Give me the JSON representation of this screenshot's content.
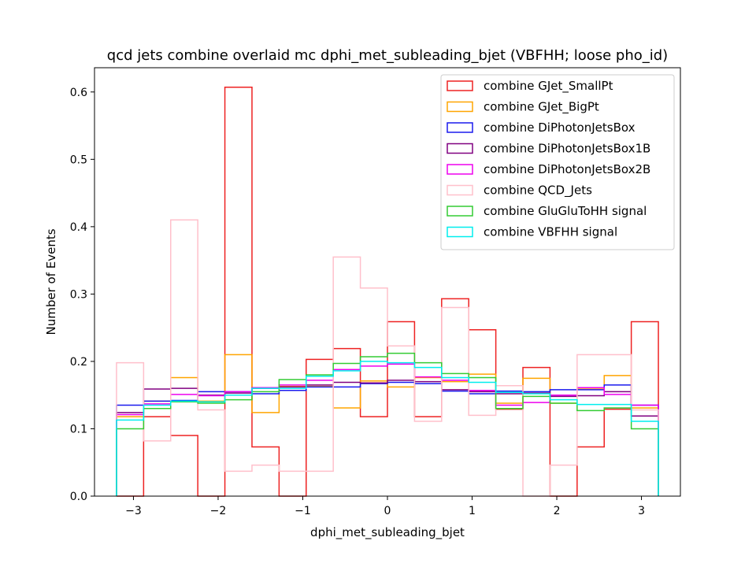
{
  "chart_data": {
    "type": "histogram-step",
    "title": "qcd jets combine overlaid mc dphi_met_subleading_bjet (VBFHH; loose pho_id)",
    "xlabel": "dphi_met_subleading_bjet",
    "ylabel": "Number of Events",
    "xlim": [
      -3.46,
      3.46
    ],
    "ylim": [
      0,
      0.636
    ],
    "xticks": [
      -3,
      -2,
      -1,
      0,
      1,
      2,
      3
    ],
    "xtick_labels": [
      "−3",
      "−2",
      "−1",
      "0",
      "1",
      "2",
      "3"
    ],
    "yticks": [
      0.0,
      0.1,
      0.2,
      0.3,
      0.4,
      0.5,
      0.6
    ],
    "ytick_labels": [
      "0.0",
      "0.1",
      "0.2",
      "0.3",
      "0.4",
      "0.5",
      "0.6"
    ],
    "bin_edges": [
      -3.2,
      -2.88,
      -2.56,
      -2.24,
      -1.92,
      -1.6,
      -1.28,
      -0.96,
      -0.64,
      -0.32,
      0.0,
      0.32,
      0.64,
      0.96,
      1.28,
      1.6,
      1.92,
      2.24,
      2.56,
      2.88,
      3.2
    ],
    "legend_position": "upper right",
    "series": [
      {
        "name": "combine GJet_SmallPt",
        "color": "#ee2222",
        "values": [
          0.0,
          0.118,
          0.09,
          0.0,
          0.607,
          0.073,
          0.0,
          0.203,
          0.219,
          0.118,
          0.259,
          0.118,
          0.293,
          0.247,
          0.129,
          0.191,
          0.0,
          0.073,
          0.129,
          0.259
        ]
      },
      {
        "name": "combine GJet_BigPt",
        "color": "#ffa500",
        "values": [
          0.118,
          0.141,
          0.176,
          0.141,
          0.21,
          0.124,
          0.163,
          0.163,
          0.131,
          0.171,
          0.162,
          0.176,
          0.17,
          0.181,
          0.138,
          0.175,
          0.138,
          0.159,
          0.179,
          0.131
        ]
      },
      {
        "name": "combine DiPhotonJetsBox",
        "color": "#1a1aee",
        "values": [
          0.135,
          0.141,
          0.142,
          0.155,
          0.155,
          0.152,
          0.157,
          0.162,
          0.162,
          0.167,
          0.169,
          0.167,
          0.156,
          0.152,
          0.156,
          0.155,
          0.158,
          0.158,
          0.165,
          0.135
        ]
      },
      {
        "name": "combine DiPhotonJetsBox1B",
        "color": "#800080",
        "values": [
          0.124,
          0.159,
          0.16,
          0.15,
          0.153,
          0.16,
          0.162,
          0.165,
          0.169,
          0.168,
          0.172,
          0.17,
          0.158,
          0.155,
          0.152,
          0.153,
          0.148,
          0.149,
          0.155,
          0.119
        ]
      },
      {
        "name": "combine DiPhotonJetsBox2B",
        "color": "#ee00ee",
        "values": [
          0.121,
          0.137,
          0.151,
          0.149,
          0.155,
          0.161,
          0.165,
          0.172,
          0.188,
          0.193,
          0.196,
          0.177,
          0.172,
          0.157,
          0.135,
          0.139,
          0.15,
          0.161,
          0.151,
          0.135
        ]
      },
      {
        "name": "combine QCD_Jets",
        "color": "#ffc0cb",
        "values": [
          0.198,
          0.082,
          0.41,
          0.128,
          0.037,
          0.046,
          0.037,
          0.037,
          0.355,
          0.309,
          0.223,
          0.111,
          0.28,
          0.12,
          0.164,
          0.0,
          0.046,
          0.21,
          0.21,
          0.128
        ]
      },
      {
        "name": "combine GluGluToHH signal",
        "color": "#33cc33",
        "values": [
          0.1,
          0.13,
          0.14,
          0.138,
          0.143,
          0.155,
          0.173,
          0.18,
          0.197,
          0.207,
          0.212,
          0.198,
          0.182,
          0.176,
          0.13,
          0.148,
          0.138,
          0.127,
          0.131,
          0.1
        ]
      },
      {
        "name": "combine VBFHH signal",
        "color": "#00eeee",
        "values": [
          0.113,
          0.135,
          0.141,
          0.14,
          0.15,
          0.16,
          0.16,
          0.178,
          0.186,
          0.2,
          0.198,
          0.191,
          0.176,
          0.169,
          0.154,
          0.152,
          0.143,
          0.136,
          0.136,
          0.111
        ]
      }
    ]
  }
}
